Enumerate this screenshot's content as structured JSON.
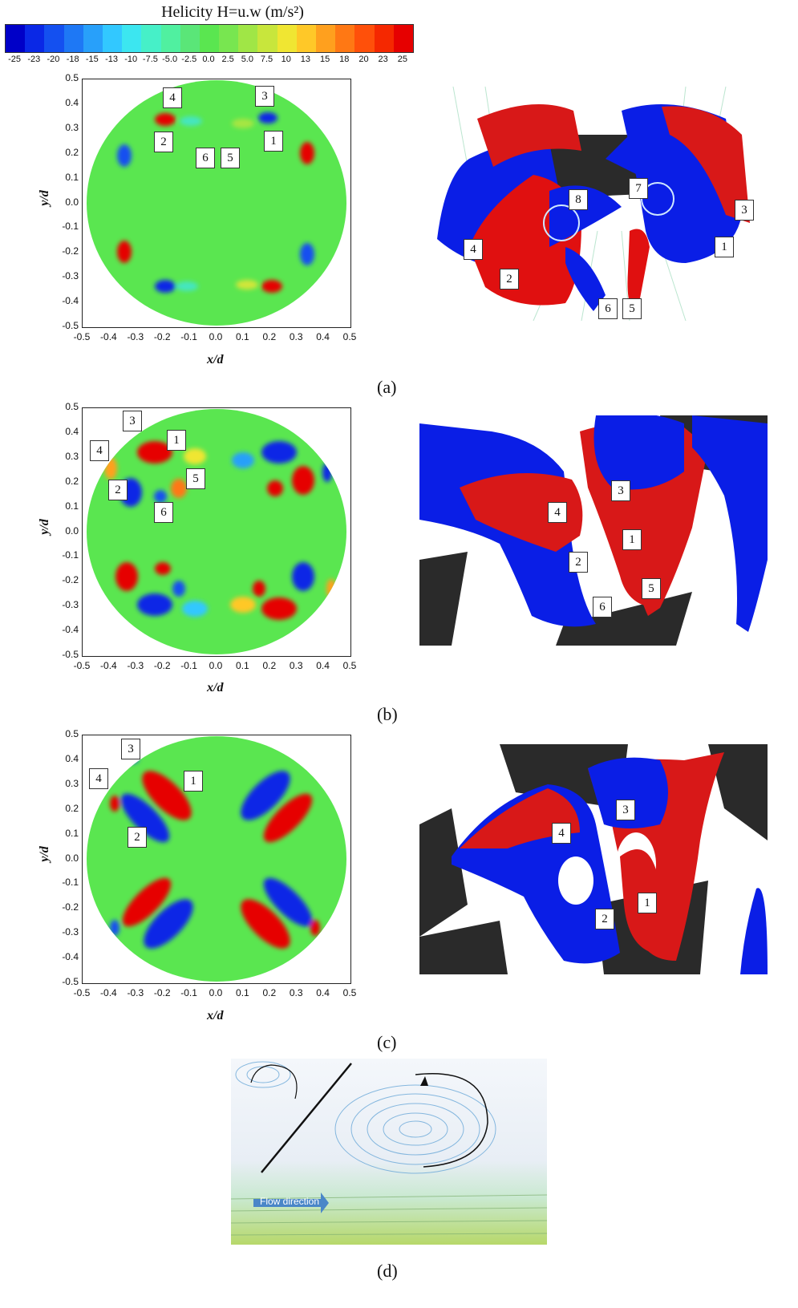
{
  "colorbar": {
    "title": "Helicity H=u.w (m/s²)",
    "ticks": [
      "-25",
      "-23",
      "-20",
      "-18",
      "-15",
      "-13",
      "-10",
      "-7.5",
      "-5.0",
      "-2.5",
      "0.0",
      "2.5",
      "5.0",
      "7.5",
      "10",
      "13",
      "15",
      "18",
      "20",
      "23",
      "25"
    ],
    "colors": [
      "#0000c8",
      "#0a28e6",
      "#1450f0",
      "#1e78f5",
      "#28a0fa",
      "#32c8ff",
      "#3ce6f0",
      "#46f0c8",
      "#50f0a0",
      "#5ae678",
      "#5ae650",
      "#78e650",
      "#a0e646",
      "#c8e63c",
      "#f0e632",
      "#ffc828",
      "#ffa01e",
      "#ff7814",
      "#ff500a",
      "#f52800",
      "#e60000"
    ]
  },
  "panels": [
    {
      "caption": "(a)",
      "xlabel": "x/d",
      "ylabel": "y/d",
      "xticks": [
        "-0.5",
        "-0.4",
        "-0.3",
        "-0.2",
        "-0.1",
        "0.0",
        "0.1",
        "0.2",
        "0.3",
        "0.4",
        "0.5"
      ],
      "yticks": [
        "0.5",
        "0.4",
        "0.3",
        "0.2",
        "0.1",
        "0.0",
        "-0.1",
        "-0.2",
        "-0.3",
        "-0.4",
        "-0.5"
      ],
      "contour_markers": [
        "4",
        "3",
        "2",
        "1",
        "6",
        "5"
      ],
      "render_markers": [
        "8",
        "7",
        "3",
        "4",
        "1",
        "2",
        "6",
        "5"
      ]
    },
    {
      "caption": "(b)",
      "xlabel": "x/d",
      "ylabel": "y/d",
      "xticks": [
        "-0.5",
        "-0.4",
        "-0.3",
        "-0.2",
        "-0.1",
        "0.0",
        "0.1",
        "0.2",
        "0.3",
        "0.4",
        "0.5"
      ],
      "yticks": [
        "0.5",
        "0.4",
        "0.3",
        "0.2",
        "0.1",
        "0.0",
        "-0.1",
        "-0.2",
        "-0.3",
        "-0.4",
        "-0.5"
      ],
      "contour_markers": [
        "3",
        "1",
        "4",
        "5",
        "2",
        "6"
      ],
      "render_markers": [
        "3",
        "4",
        "1",
        "2",
        "5",
        "6"
      ]
    },
    {
      "caption": "(c)",
      "xlabel": "x/d",
      "ylabel": "y/d",
      "xticks": [
        "-0.5",
        "-0.4",
        "-0.3",
        "-0.2",
        "-0.1",
        "0.0",
        "0.1",
        "0.2",
        "0.3",
        "0.4",
        "0.5"
      ],
      "yticks": [
        "0.5",
        "0.4",
        "0.3",
        "0.2",
        "0.1",
        "0.0",
        "-0.1",
        "-0.2",
        "-0.3",
        "-0.4",
        "-0.5"
      ],
      "contour_markers": [
        "3",
        "4",
        "1",
        "2"
      ],
      "render_markers": [
        "3",
        "4",
        "2",
        "1"
      ]
    }
  ],
  "panel_d": {
    "caption": "(d)",
    "flow_label": "Flow direction"
  }
}
